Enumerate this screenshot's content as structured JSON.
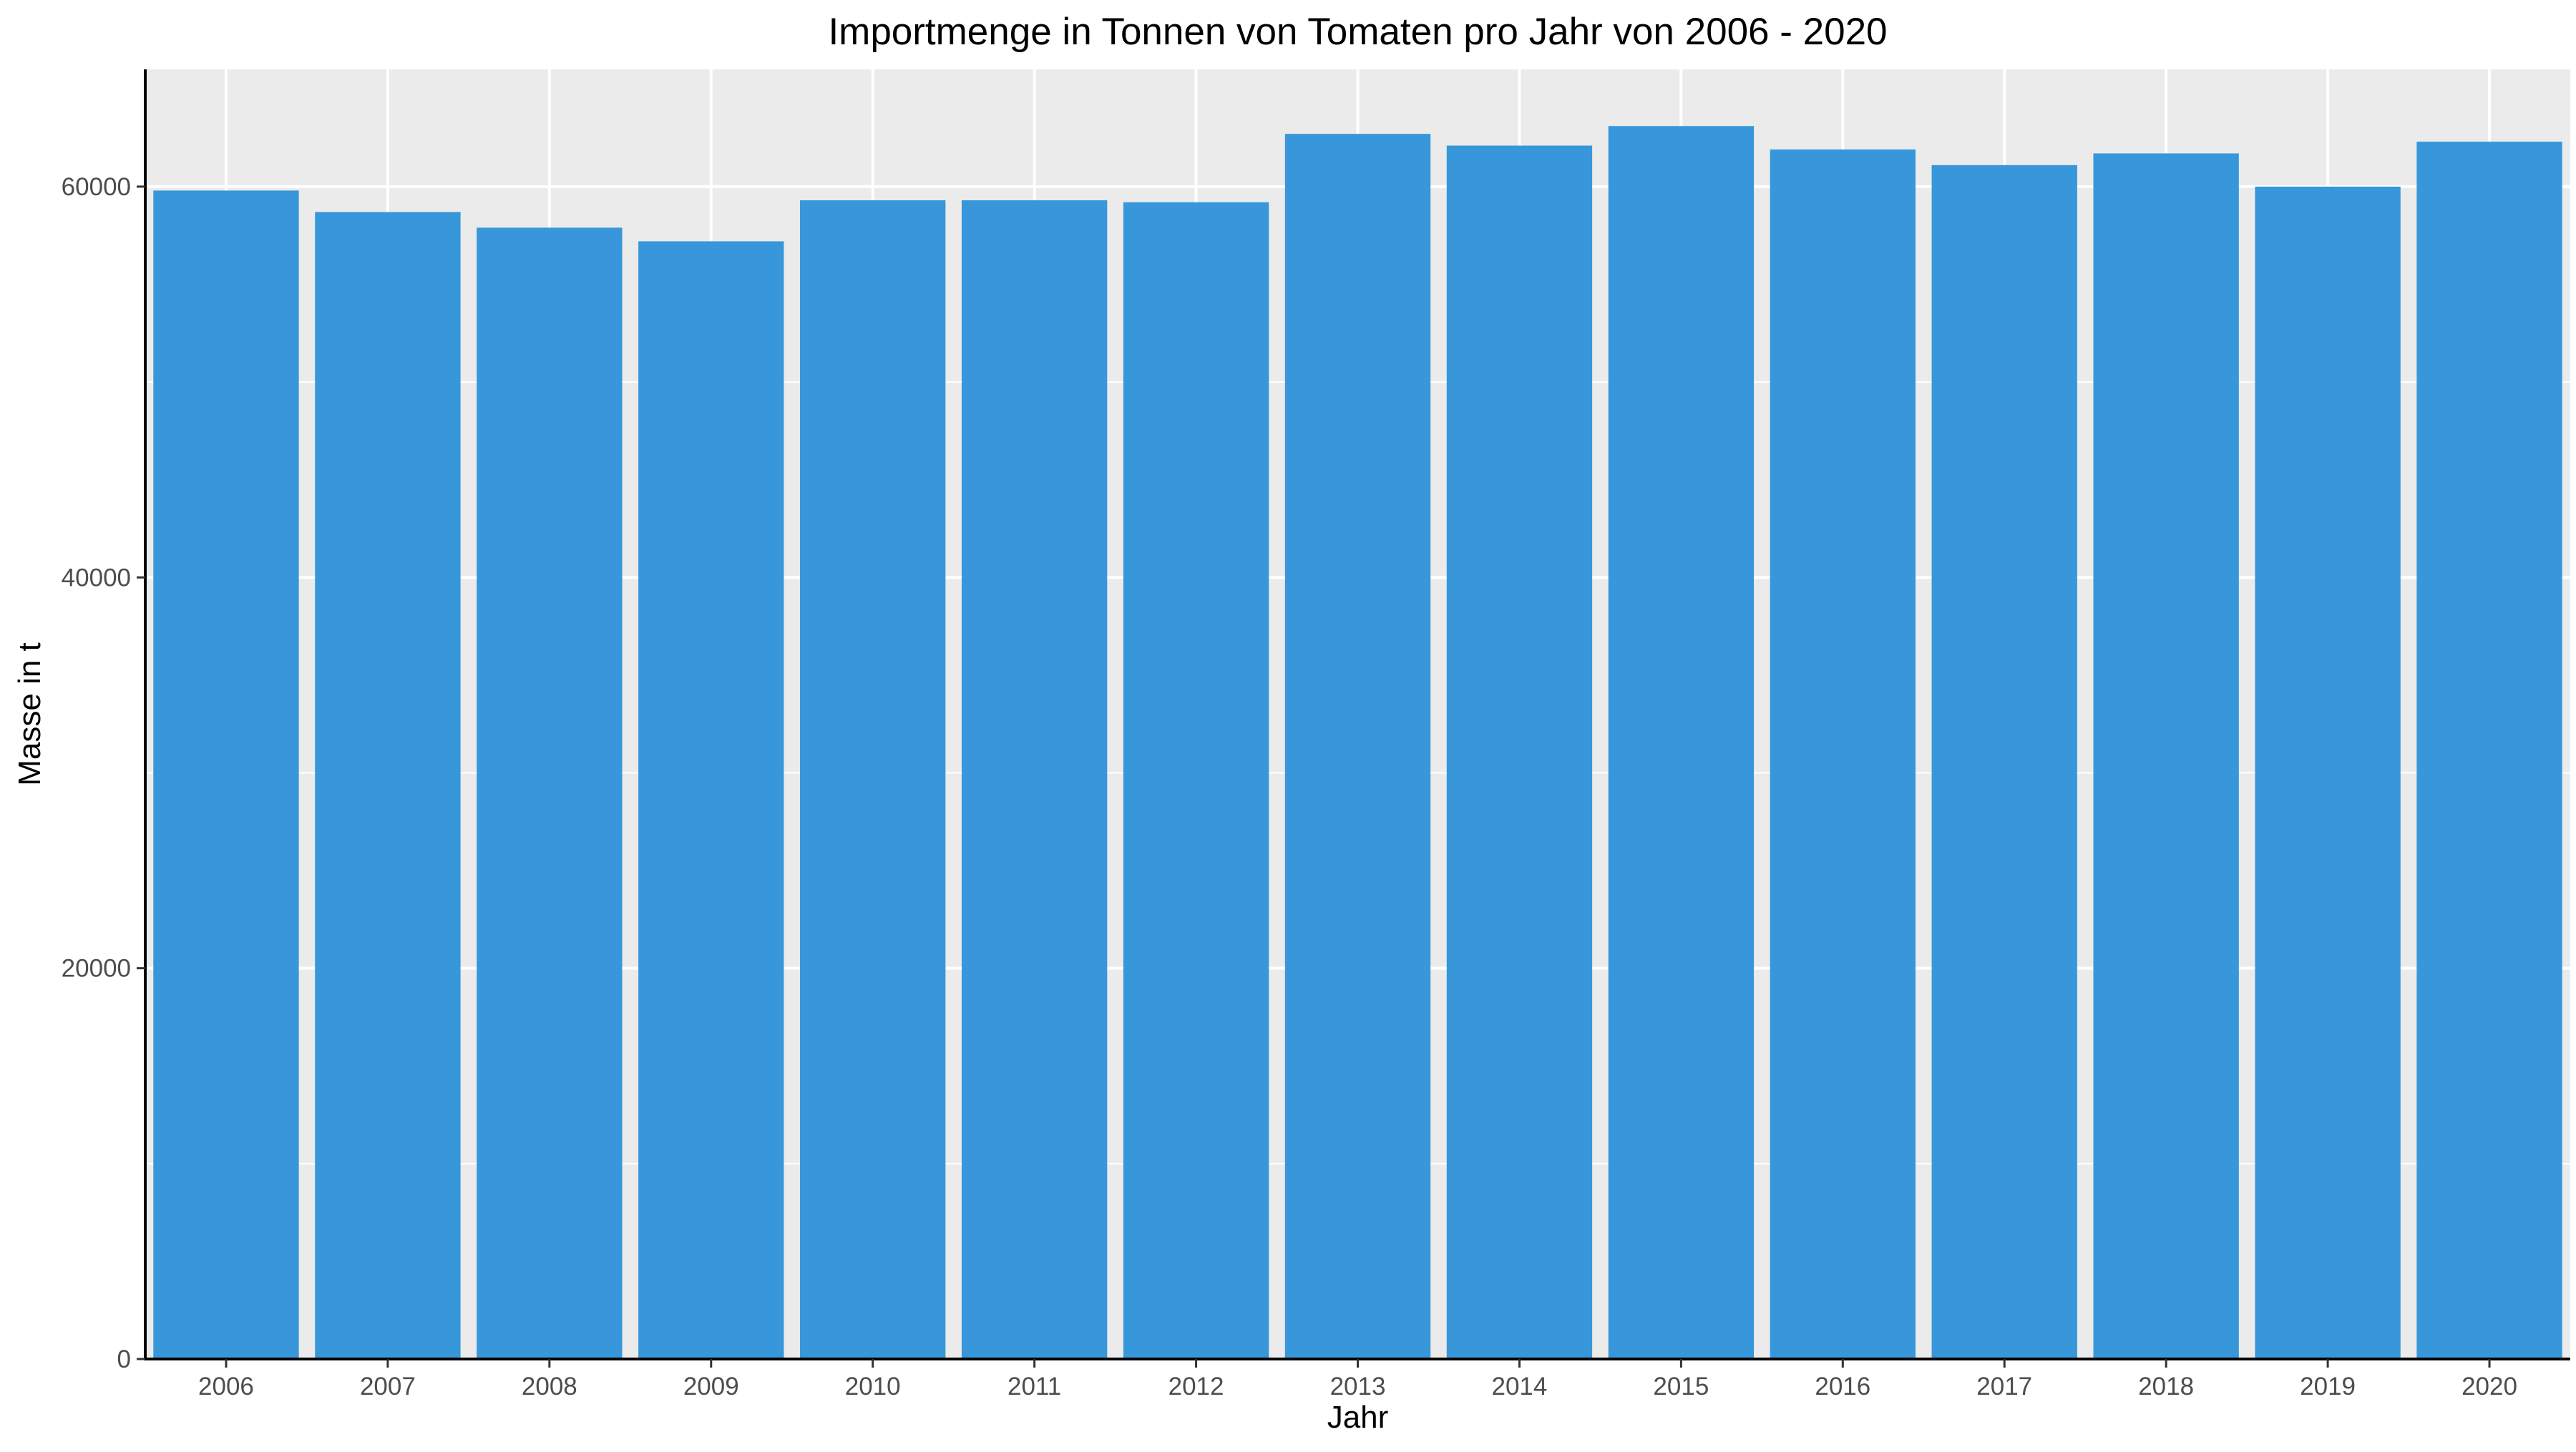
{
  "chart_data": {
    "type": "bar",
    "title": "Importmenge in Tonnen von Tomaten pro Jahr von 2006 - 2020",
    "xlabel": "Jahr",
    "ylabel": "Masse in t",
    "categories": [
      "2006",
      "2007",
      "2008",
      "2009",
      "2010",
      "2011",
      "2012",
      "2013",
      "2014",
      "2015",
      "2016",
      "2017",
      "2018",
      "2019",
      "2020"
    ],
    "values": [
      59800,
      58700,
      57900,
      57200,
      59300,
      59300,
      59200,
      62700,
      62100,
      63100,
      61900,
      61100,
      61700,
      60000,
      62300
    ],
    "ylim": [
      0,
      66000
    ],
    "yticks": [
      0,
      20000,
      40000,
      60000
    ],
    "yticks_labels": [
      "0",
      "20000",
      "40000",
      "60000"
    ],
    "grid": true,
    "legend": "none",
    "colors": {
      "bar": "#3797da",
      "panel": "#ebebeb",
      "grid": "#ffffff",
      "axis": "#000000"
    }
  }
}
